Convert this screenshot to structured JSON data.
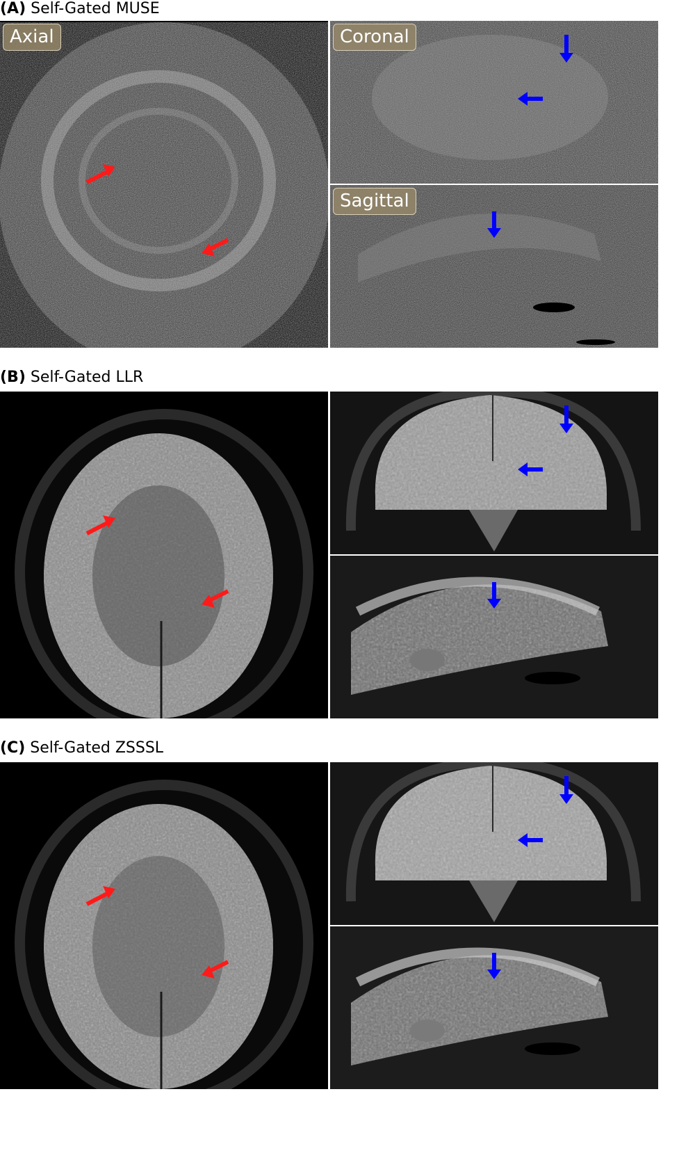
{
  "rows": [
    {
      "id": "A",
      "label": "(A)",
      "method": "Self-Gated MUSE",
      "views": {
        "axial": "Axial",
        "coronal": "Coronal",
        "sagittal": "Sagittal"
      }
    },
    {
      "id": "B",
      "label": "(B)",
      "method": "Self-Gated LLR",
      "views": null
    },
    {
      "id": "C",
      "label": "(C)",
      "method": "Self-Gated ZSSSL",
      "views": null
    }
  ],
  "colors": {
    "red_arrow": "#ff1a1a",
    "blue_arrow": "#0000ff",
    "tag_bg": "#968769"
  }
}
